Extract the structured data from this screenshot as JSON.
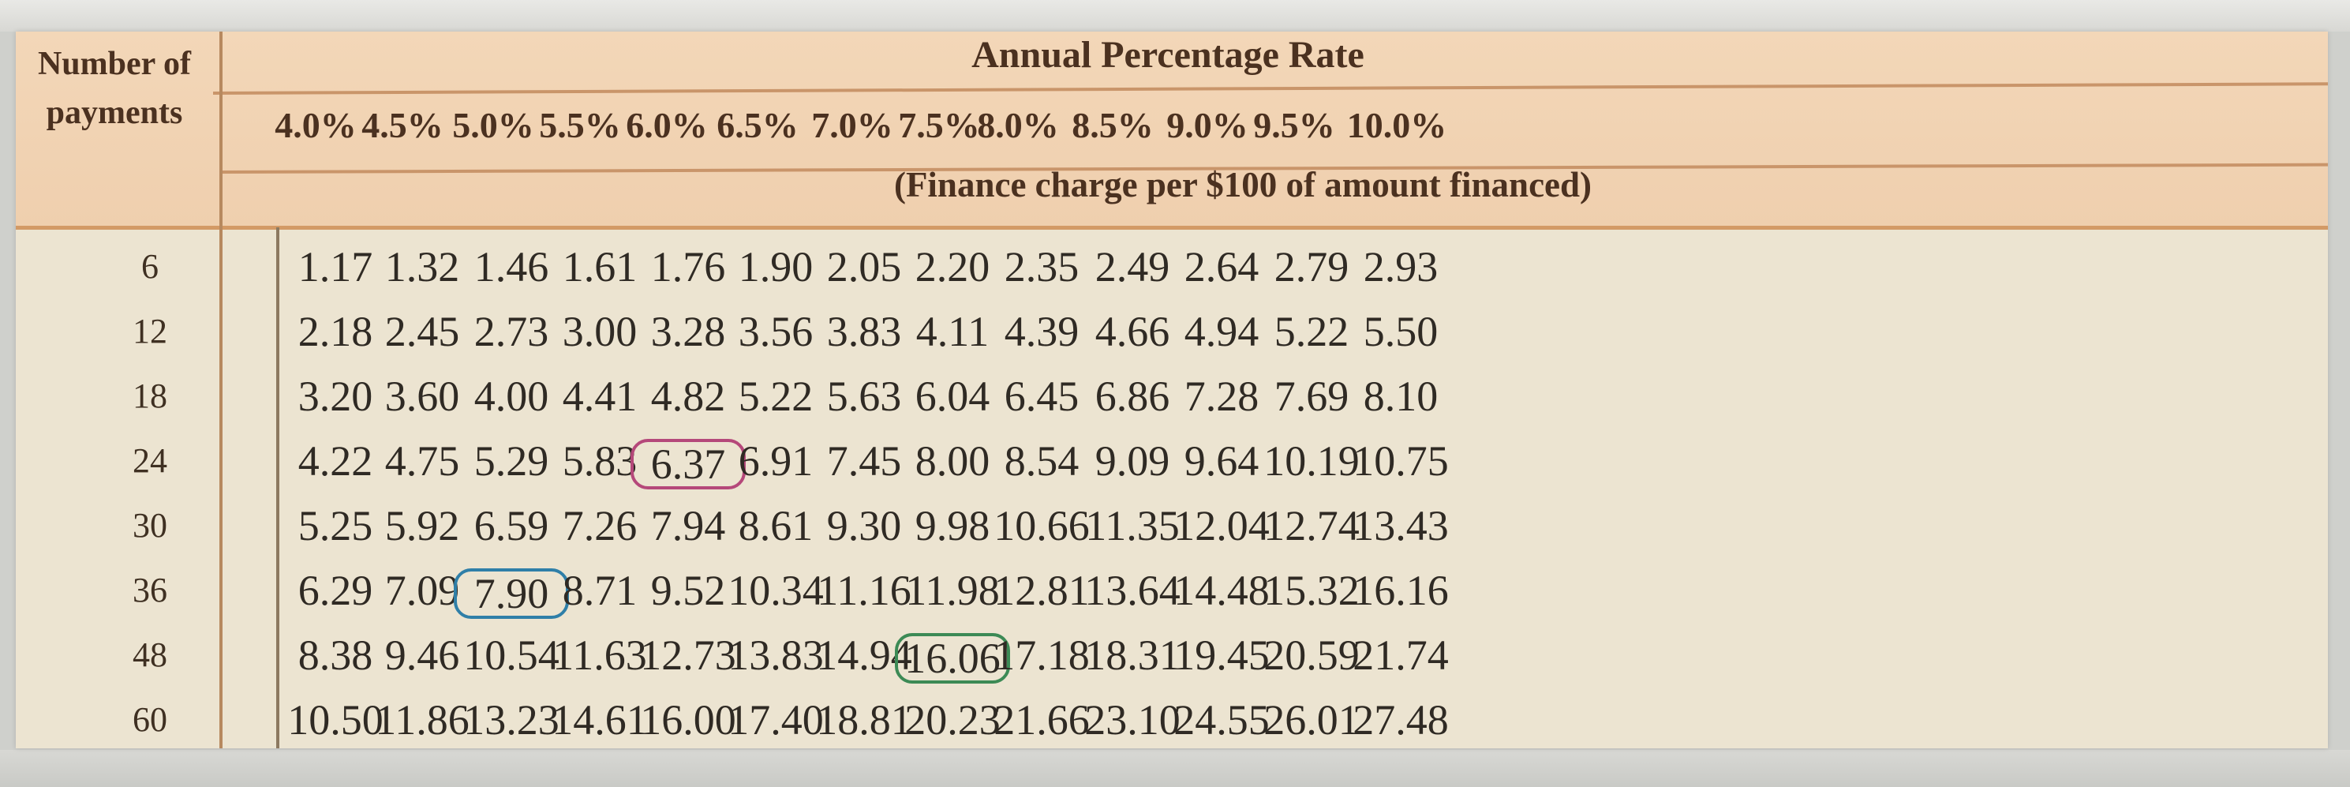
{
  "header": {
    "number_of_payments": "Number of payments",
    "annual_percentage_rate": "Annual Percentage Rate",
    "finance_charge_note": "(Finance charge per $100 of amount financed)"
  },
  "rates": [
    "4.0%",
    "4.5%",
    "5.0%",
    "5.5%",
    "6.0%",
    "6.5%",
    "7.0%",
    "7.5%",
    "8.0%",
    "8.5%",
    "9.0%",
    "9.5%",
    "10.0%"
  ],
  "rows": [
    {
      "payments": "6",
      "values": [
        "1.17",
        "1.32",
        "1.46",
        "1.61",
        "1.76",
        "1.90",
        "2.05",
        "2.20",
        "2.35",
        "2.49",
        "2.64",
        "2.79",
        "2.93"
      ]
    },
    {
      "payments": "12",
      "values": [
        "2.18",
        "2.45",
        "2.73",
        "3.00",
        "3.28",
        "3.56",
        "3.83",
        "4.11",
        "4.39",
        "4.66",
        "4.94",
        "5.22",
        "5.50"
      ]
    },
    {
      "payments": "18",
      "values": [
        "3.20",
        "3.60",
        "4.00",
        "4.41",
        "4.82",
        "5.22",
        "5.63",
        "6.04",
        "6.45",
        "6.86",
        "7.28",
        "7.69",
        "8.10"
      ]
    },
    {
      "payments": "24",
      "values": [
        "4.22",
        "4.75",
        "5.29",
        "5.83",
        "6.37",
        "6.91",
        "7.45",
        "8.00",
        "8.54",
        "9.09",
        "9.64",
        "10.19",
        "10.75"
      ]
    },
    {
      "payments": "30",
      "values": [
        "5.25",
        "5.92",
        "6.59",
        "7.26",
        "7.94",
        "8.61",
        "9.30",
        "9.98",
        "10.66",
        "11.35",
        "12.04",
        "12.74",
        "13.43"
      ]
    },
    {
      "payments": "36",
      "values": [
        "6.29",
        "7.09",
        "7.90",
        "8.71",
        "9.52",
        "10.34",
        "11.16",
        "11.98",
        "12.81",
        "13.64",
        "14.48",
        "15.32",
        "16.16"
      ]
    },
    {
      "payments": "48",
      "values": [
        "8.38",
        "9.46",
        "10.54",
        "11.63",
        "12.73",
        "13.83",
        "14.94",
        "16.06",
        "17.18",
        "18.31",
        "19.45",
        "20.59",
        "21.74"
      ]
    },
    {
      "payments": "60",
      "values": [
        "10.50",
        "11.86",
        "13.23",
        "14.61",
        "16.00",
        "17.40",
        "18.81",
        "20.23",
        "21.66",
        "23.10",
        "24.55",
        "26.01",
        "27.48"
      ]
    }
  ],
  "highlights": [
    {
      "row": 3,
      "col": 4,
      "color": "#b5487a"
    },
    {
      "row": 5,
      "col": 2,
      "color": "#2f7fa8"
    },
    {
      "row": 6,
      "col": 7,
      "color": "#3c8a55"
    }
  ]
}
